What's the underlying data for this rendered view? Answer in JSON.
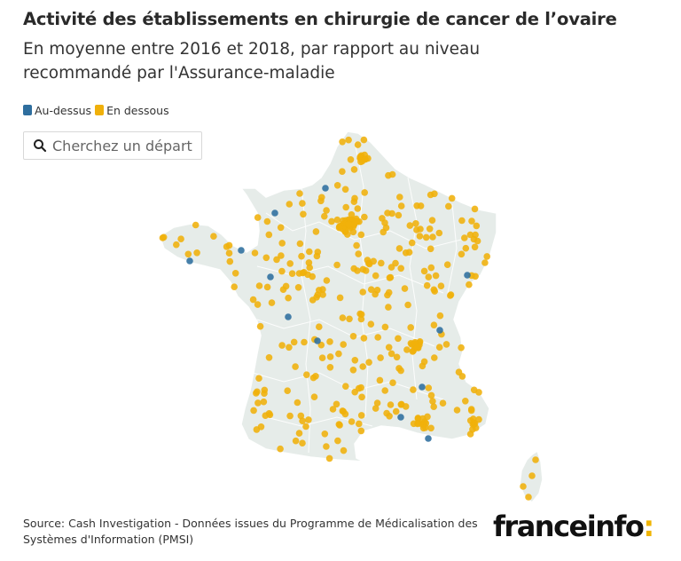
{
  "header": {
    "title": "Activité des établissements en chirurgie de cancer de l’ovaire",
    "subtitle": "En moyenne entre 2016 et 2018, par rapport au niveau recommandé par l'Assurance-maladie"
  },
  "legend": {
    "items": [
      {
        "label": "Au-dessus",
        "color": "#2e6e9e"
      },
      {
        "label": "En dessous",
        "color": "#f0b00a"
      }
    ]
  },
  "search": {
    "placeholder": "Cherchez un départ",
    "icon": "search-icon"
  },
  "map": {
    "region": "France métropolitaine",
    "land_color": "#e6ece9",
    "border_color": "#ffffff"
  },
  "footer": {
    "source": "Source: Cash Investigation - Données issues du Programme de Médicalisation des Systèmes d'Information (PMSI)",
    "logo_text": "franceinfo",
    "logo_mark": ":",
    "logo_mark_color": "#f0b400"
  }
}
